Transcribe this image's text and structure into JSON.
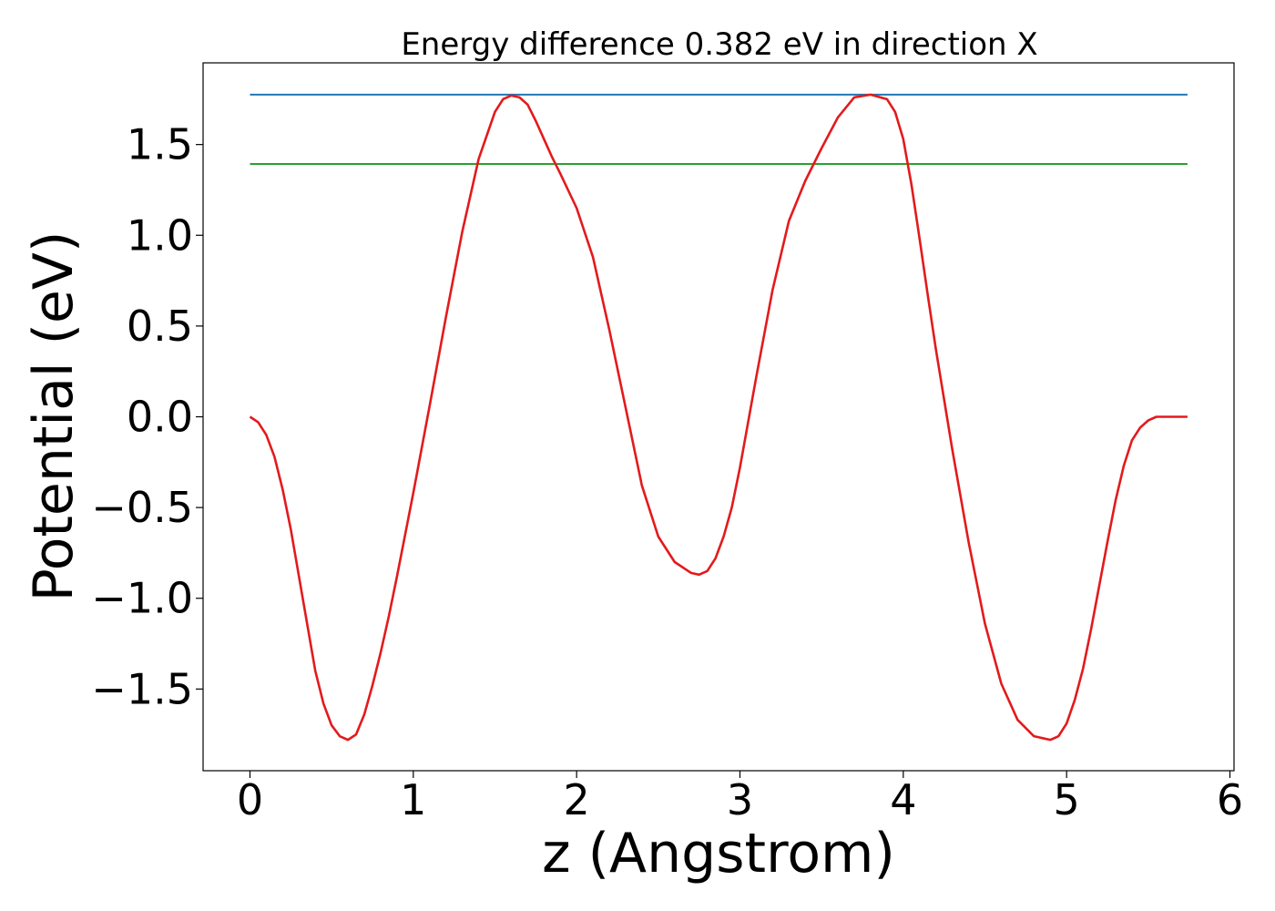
{
  "chart_data": {
    "type": "line",
    "title": "Energy difference 0.382 eV in direction X",
    "xlabel": "z (Angstrom)",
    "ylabel": "Potential (eV)",
    "xlim": [
      -0.287,
      6.025
    ],
    "ylim": [
      -1.95,
      1.95
    ],
    "x_ticks": [
      0,
      1,
      2,
      3,
      4,
      5,
      6
    ],
    "x_tick_labels": [
      "0",
      "1",
      "2",
      "3",
      "4",
      "5",
      "6"
    ],
    "y_ticks": [
      -1.5,
      -1.0,
      -0.5,
      0.0,
      0.5,
      1.0,
      1.5
    ],
    "y_tick_labels": [
      "−1.5",
      "−1.0",
      "−0.5",
      "0.0",
      "0.5",
      "1.0",
      "1.5"
    ],
    "grid": false,
    "series": [
      {
        "color": "#1f77b4",
        "x": [
          0,
          5.74
        ],
        "y": [
          1.775,
          1.775
        ]
      },
      {
        "color": "#2ca02c",
        "x": [
          0,
          5.74
        ],
        "y": [
          1.393,
          1.393
        ]
      },
      {
        "color": "#e31a1c",
        "x": [
          0.0,
          0.05,
          0.1,
          0.15,
          0.2,
          0.25,
          0.3,
          0.35,
          0.4,
          0.45,
          0.5,
          0.55,
          0.6,
          0.65,
          0.7,
          0.75,
          0.8,
          0.85,
          0.9,
          0.95,
          1.0,
          1.1,
          1.2,
          1.3,
          1.4,
          1.5,
          1.55,
          1.6,
          1.65,
          1.7,
          1.75,
          1.8,
          1.85,
          1.9,
          2.0,
          2.1,
          2.2,
          2.3,
          2.4,
          2.5,
          2.6,
          2.7,
          2.75,
          2.8,
          2.85,
          2.9,
          2.95,
          3.0,
          3.1,
          3.2,
          3.3,
          3.4,
          3.5,
          3.6,
          3.7,
          3.8,
          3.9,
          3.95,
          4.0,
          4.05,
          4.1,
          4.15,
          4.2,
          4.3,
          4.4,
          4.5,
          4.6,
          4.7,
          4.8,
          4.9,
          4.95,
          5.0,
          5.05,
          5.1,
          5.15,
          5.2,
          5.25,
          5.3,
          5.35,
          5.4,
          5.45,
          5.5,
          5.55,
          5.6,
          5.65,
          5.7,
          5.74
        ],
        "y": [
          0.0,
          -0.03,
          -0.1,
          -0.22,
          -0.4,
          -0.62,
          -0.88,
          -1.14,
          -1.4,
          -1.58,
          -1.7,
          -1.76,
          -1.78,
          -1.75,
          -1.64,
          -1.48,
          -1.3,
          -1.1,
          -0.88,
          -0.65,
          -0.42,
          0.06,
          0.55,
          1.02,
          1.42,
          1.68,
          1.75,
          1.77,
          1.76,
          1.72,
          1.63,
          1.53,
          1.43,
          1.34,
          1.15,
          0.88,
          0.48,
          0.05,
          -0.38,
          -0.66,
          -0.8,
          -0.86,
          -0.87,
          -0.85,
          -0.78,
          -0.66,
          -0.5,
          -0.28,
          0.22,
          0.7,
          1.08,
          1.3,
          1.48,
          1.65,
          1.76,
          1.775,
          1.75,
          1.68,
          1.53,
          1.28,
          0.98,
          0.67,
          0.37,
          -0.18,
          -0.69,
          -1.14,
          -1.47,
          -1.67,
          -1.76,
          -1.78,
          -1.76,
          -1.69,
          -1.56,
          -1.39,
          -1.17,
          -0.93,
          -0.69,
          -0.46,
          -0.27,
          -0.13,
          -0.06,
          -0.02,
          0.0,
          0.0,
          0.0,
          0.0,
          0.0
        ]
      }
    ]
  }
}
